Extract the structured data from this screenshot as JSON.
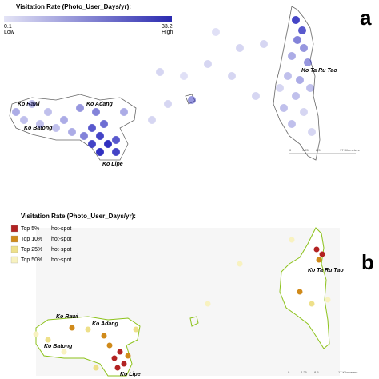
{
  "panels": [
    {
      "label": "a",
      "legend": {
        "title": "Visitation Rate (Photo_User_Days/yr):",
        "min": 0.1,
        "max": 33.2,
        "low": "Low",
        "high": "High"
      },
      "places": [
        "Ko Ta Ru Tao",
        "Ko Rawi",
        "Ko Adang",
        "Ko Batong",
        "Ko Lipe"
      ],
      "scale": [
        "0",
        "4.25",
        "8.5",
        "17 Kilometers"
      ]
    },
    {
      "label": "b",
      "legend": {
        "title": "Visitation Rate (Photo_User_Days/yr):",
        "items": [
          {
            "name": "Top 5%",
            "kind": "hot-spot",
            "color": "#b22222"
          },
          {
            "name": "Top 10%",
            "kind": "hot-spot",
            "color": "#d08a1a"
          },
          {
            "name": "Top 25%",
            "kind": "hot-spot",
            "color": "#eee08a"
          },
          {
            "name": "Top 50%",
            "kind": "hot-spot",
            "color": "#f8f2c0"
          }
        ]
      },
      "places": [
        "Ko Ta Ru Tao",
        "Ko Rawi",
        "Ko Adang",
        "Ko Batong",
        "Ko Lipe"
      ],
      "scale": [
        "0",
        "4.25",
        "8.5",
        "17 Kilometers"
      ]
    }
  ]
}
